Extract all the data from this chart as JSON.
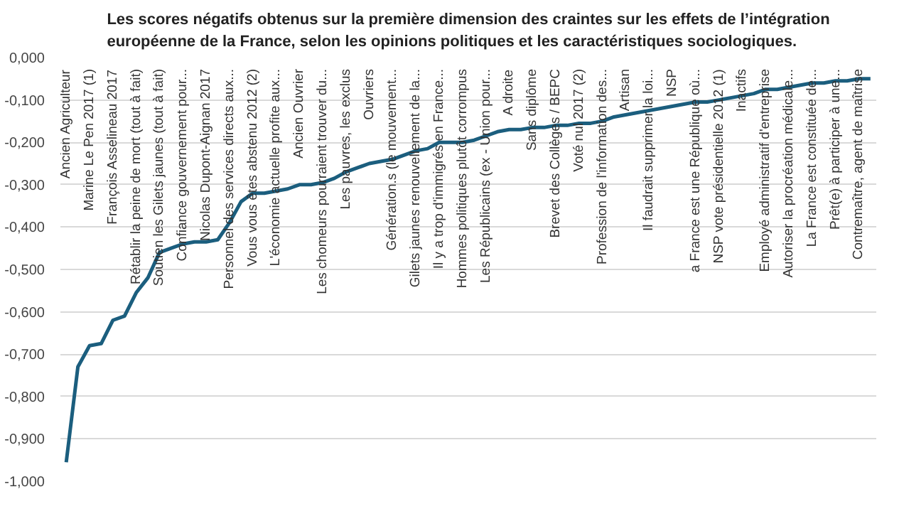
{
  "chart_data": {
    "type": "line",
    "title": "Les scores négatifs obtenus sur la première dimension des craintes sur les effets de l’intégration européenne de la France, selon les opinions politiques et les caractéristiques sociologiques.",
    "categories": [
      "Ancien Agriculteur",
      null,
      "Marine Le Pen 2017 (1)",
      null,
      "François Asselineau 2017",
      null,
      "Rétablir la peine de mort (tout à fait)",
      null,
      "Soutien les Gilets jaunes (tout à fait)",
      null,
      "Confiance gouvernement pour...",
      null,
      "Nicolas Dupont-Aignan 2017",
      null,
      "Personnel des services directs aux...",
      null,
      "Vous vous êtes abstenu 2012 (2)",
      null,
      "L'économie actuelle profite aux...",
      null,
      "Ancien Ouvrier",
      null,
      "Les chomeurs pourraient trouver du...",
      null,
      "Les pauvres, les exclus",
      null,
      "Ouvriers",
      null,
      "Génération.s (le mouvement...",
      null,
      "Gilets jaunes renouvellement de la...",
      null,
      "Il y a trop d'immigrés en France...",
      null,
      "Hommes politiques plutôt corrompus",
      null,
      "Les Républicains (ex - Union pour...",
      null,
      "A droite",
      null,
      "Sans diplôme",
      null,
      "Brevet des Collèges / BEPC",
      null,
      "Voté nul 2017 (2)",
      null,
      "Profession de l'information des...",
      null,
      "Artisan",
      null,
      "Il faudrait supprimer la loi...",
      null,
      "NSP",
      null,
      "a France est une République où...",
      null,
      "NSP vote présidentielle 2012 (1)",
      null,
      "Inactifs",
      null,
      "Employé administratif d'entreprise",
      null,
      "Autoriser la procréation médicale...",
      null,
      "La France est constituée de...",
      null,
      "Prêt(e) à participer à une...",
      null,
      "Contremaître, agent de maîtrise",
      null
    ],
    "series": [
      {
        "color": "#1b5e7e",
        "values": [
          -0.955,
          -0.73,
          -0.68,
          -0.675,
          -0.62,
          -0.61,
          -0.555,
          -0.52,
          -0.46,
          -0.45,
          -0.44,
          -0.435,
          -0.435,
          -0.43,
          -0.39,
          -0.34,
          -0.32,
          -0.32,
          -0.315,
          -0.31,
          -0.3,
          -0.3,
          -0.295,
          -0.285,
          -0.27,
          -0.26,
          -0.25,
          -0.245,
          -0.24,
          -0.23,
          -0.22,
          -0.215,
          -0.2,
          -0.2,
          -0.2,
          -0.195,
          -0.185,
          -0.175,
          -0.17,
          -0.17,
          -0.165,
          -0.165,
          -0.16,
          -0.16,
          -0.155,
          -0.155,
          -0.15,
          -0.14,
          -0.135,
          -0.13,
          -0.125,
          -0.12,
          -0.115,
          -0.11,
          -0.105,
          -0.105,
          -0.1,
          -0.095,
          -0.09,
          -0.085,
          -0.075,
          -0.075,
          -0.07,
          -0.065,
          -0.06,
          -0.06,
          -0.055,
          -0.055,
          -0.05,
          -0.05
        ]
      }
    ],
    "ylim": [
      -1.0,
      0.0
    ],
    "yticks": [
      {
        "value": 0.0,
        "label": "0,000"
      },
      {
        "value": -0.1,
        "label": "-0,100"
      },
      {
        "value": -0.2,
        "label": "-0,200"
      },
      {
        "value": -0.3,
        "label": "-0,300"
      },
      {
        "value": -0.4,
        "label": "-0,400"
      },
      {
        "value": -0.5,
        "label": "-0,500"
      },
      {
        "value": -0.6,
        "label": "-0,600"
      },
      {
        "value": -0.7,
        "label": "-0,700"
      },
      {
        "value": -0.8,
        "label": "-0,800"
      },
      {
        "value": -0.9,
        "label": "-0,900"
      },
      {
        "value": -1.0,
        "label": "-1,000"
      }
    ],
    "grid": "y",
    "line_style": "solid"
  }
}
